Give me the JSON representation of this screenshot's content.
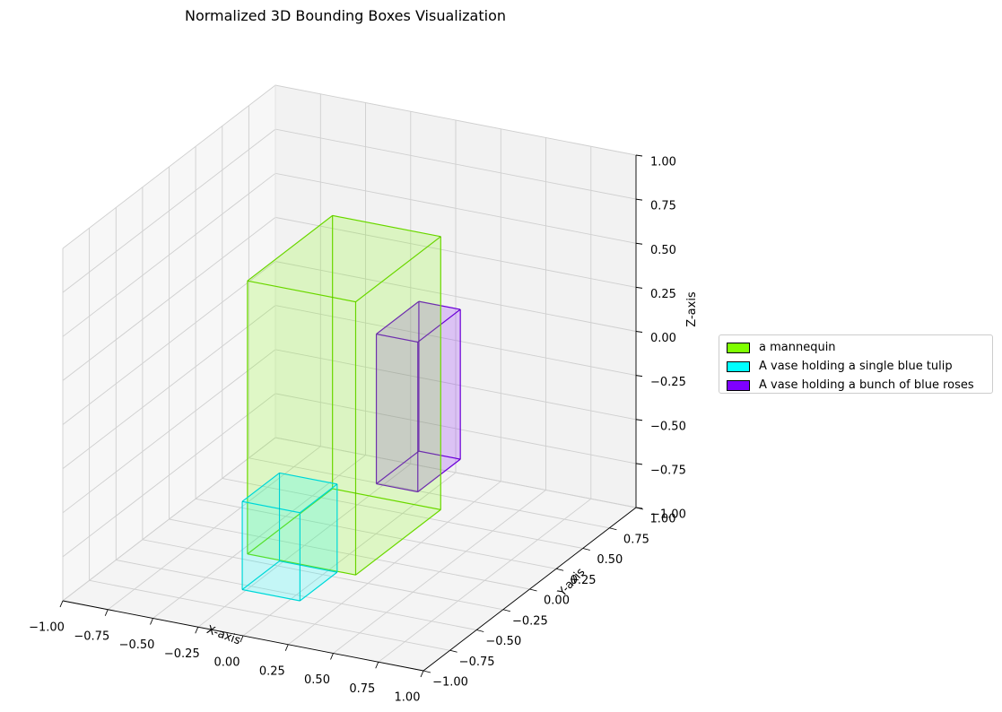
{
  "chart_data": {
    "type": "3d-box",
    "title": "Normalized 3D Bounding Boxes Visualization",
    "xlabel": "X-axis",
    "ylabel": "Y-axis",
    "zlabel": "Z-axis",
    "xlim": [
      -1,
      1
    ],
    "ylim": [
      -1,
      1
    ],
    "zlim": [
      -1,
      1
    ],
    "x_ticks": [
      "−1.00",
      "−0.75",
      "−0.50",
      "−0.25",
      "0.00",
      "0.25",
      "0.50",
      "0.75",
      "1.00"
    ],
    "y_ticks": [
      "−1.00",
      "−0.75",
      "−0.50",
      "−0.25",
      "0.00",
      "0.25",
      "0.50",
      "0.75",
      "1.00"
    ],
    "z_ticks": [
      "−1.00",
      "−0.75",
      "−0.50",
      "−0.25",
      "0.00",
      "0.25",
      "0.50",
      "0.75",
      "1.00"
    ],
    "grid": true,
    "legend_position": "right",
    "series": [
      {
        "name": "a mannequin",
        "color": "#7fff00",
        "x": [
          -0.3,
          0.3
        ],
        "y": [
          -0.45,
          0.35
        ],
        "z": [
          -0.85,
          0.7
        ]
      },
      {
        "name": "A vase holding a single blue tulip",
        "color": "#00ffff",
        "x": [
          -0.27,
          0.05
        ],
        "y": [
          -0.55,
          -0.2
        ],
        "z": [
          -1.0,
          -0.5
        ]
      },
      {
        "name": "A vase holding a bunch of blue roses",
        "color": "#7f00ff",
        "x": [
          0.12,
          0.35
        ],
        "y": [
          0.05,
          0.45
        ],
        "z": [
          -0.6,
          0.25
        ]
      }
    ]
  }
}
